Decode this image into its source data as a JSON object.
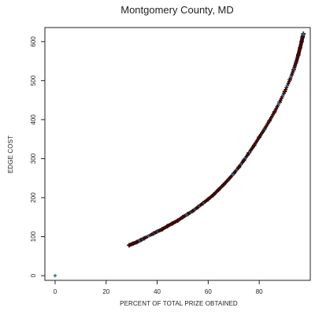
{
  "chart_data": {
    "type": "scatter",
    "title": "Montgomery County, MD",
    "xlabel": "PERCENT OF TOTAL PRIZE OBTAINED",
    "ylabel": "EDGE COST",
    "xlim": [
      -4,
      100
    ],
    "ylim": [
      -12,
      636
    ],
    "xticks": [
      0,
      20,
      40,
      60,
      80
    ],
    "yticks": [
      0,
      100,
      200,
      300,
      400,
      500,
      600
    ],
    "grid": false,
    "legend": "none",
    "marker_color": "#3a0b0b",
    "marker_accent": "#1f6f8b",
    "series": [
      {
        "points": [
          [
            0,
            0
          ],
          [
            29.0,
            78
          ],
          [
            30.5,
            82
          ],
          [
            32.0,
            86
          ],
          [
            33.5,
            91
          ],
          [
            35.0,
            96
          ],
          [
            38.5,
            108
          ],
          [
            40.0,
            113
          ],
          [
            42.0,
            119
          ],
          [
            44.0,
            127
          ],
          [
            46.0,
            134
          ],
          [
            48.0,
            141
          ],
          [
            50.0,
            150
          ],
          [
            52.0,
            158
          ],
          [
            54.0,
            166
          ],
          [
            56.0,
            176
          ],
          [
            58.0,
            186
          ],
          [
            60.0,
            196
          ],
          [
            62.0,
            207
          ],
          [
            64.0,
            220
          ],
          [
            66.0,
            233
          ],
          [
            68.0,
            247
          ],
          [
            70.0,
            262
          ],
          [
            72.0,
            278
          ],
          [
            74.0,
            296
          ],
          [
            76.0,
            315
          ],
          [
            78.0,
            334
          ],
          [
            80.0,
            355
          ],
          [
            82.0,
            375
          ],
          [
            84.0,
            397
          ],
          [
            86.0,
            420
          ],
          [
            88.0,
            445
          ],
          [
            90.0,
            472
          ],
          [
            92.0,
            502
          ],
          [
            93.5,
            528
          ],
          [
            94.5,
            548
          ],
          [
            95.3,
            566
          ],
          [
            96.0,
            584
          ],
          [
            96.6,
            600
          ],
          [
            97.0,
            612
          ],
          [
            97.3,
            620
          ]
        ]
      }
    ]
  }
}
